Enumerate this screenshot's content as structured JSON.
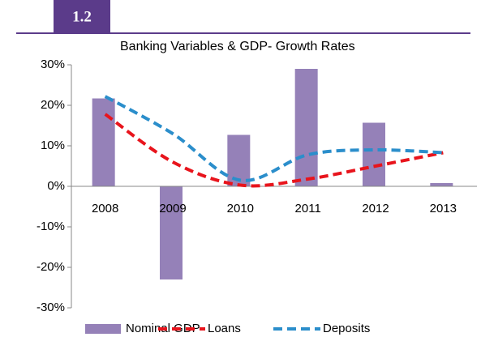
{
  "chart_data": {
    "type": "bar_line",
    "badge": "1.2",
    "title": "Banking Variables  & GDP- Growth Rates",
    "categories": [
      "2008",
      "2009",
      "2010",
      "2011",
      "2012",
      "2013"
    ],
    "series": [
      {
        "name": "Nominal GDP",
        "type": "bar",
        "color": "#9581b8",
        "values": [
          21.7,
          -23,
          12.7,
          29,
          15.7,
          0.8
        ]
      },
      {
        "name": "Loans",
        "type": "line",
        "color": "#e8141c",
        "values": [
          17.8,
          6,
          0.3,
          1.8,
          5,
          8.3
        ]
      },
      {
        "name": "Deposits",
        "type": "line",
        "color": "#2b8ecb",
        "values": [
          22.2,
          13,
          1.5,
          7.8,
          9,
          8.3
        ]
      }
    ],
    "ylim": [
      -30,
      30
    ],
    "yticks": [
      {
        "value": -30,
        "label": "-30%"
      },
      {
        "value": -20,
        "label": "-20%"
      },
      {
        "value": -10,
        "label": "-10%"
      },
      {
        "value": 0,
        "label": "0%"
      },
      {
        "value": 10,
        "label": "10%"
      },
      {
        "value": 20,
        "label": "20%"
      },
      {
        "value": 30,
        "label": "30%"
      }
    ],
    "legend": "bottom"
  }
}
